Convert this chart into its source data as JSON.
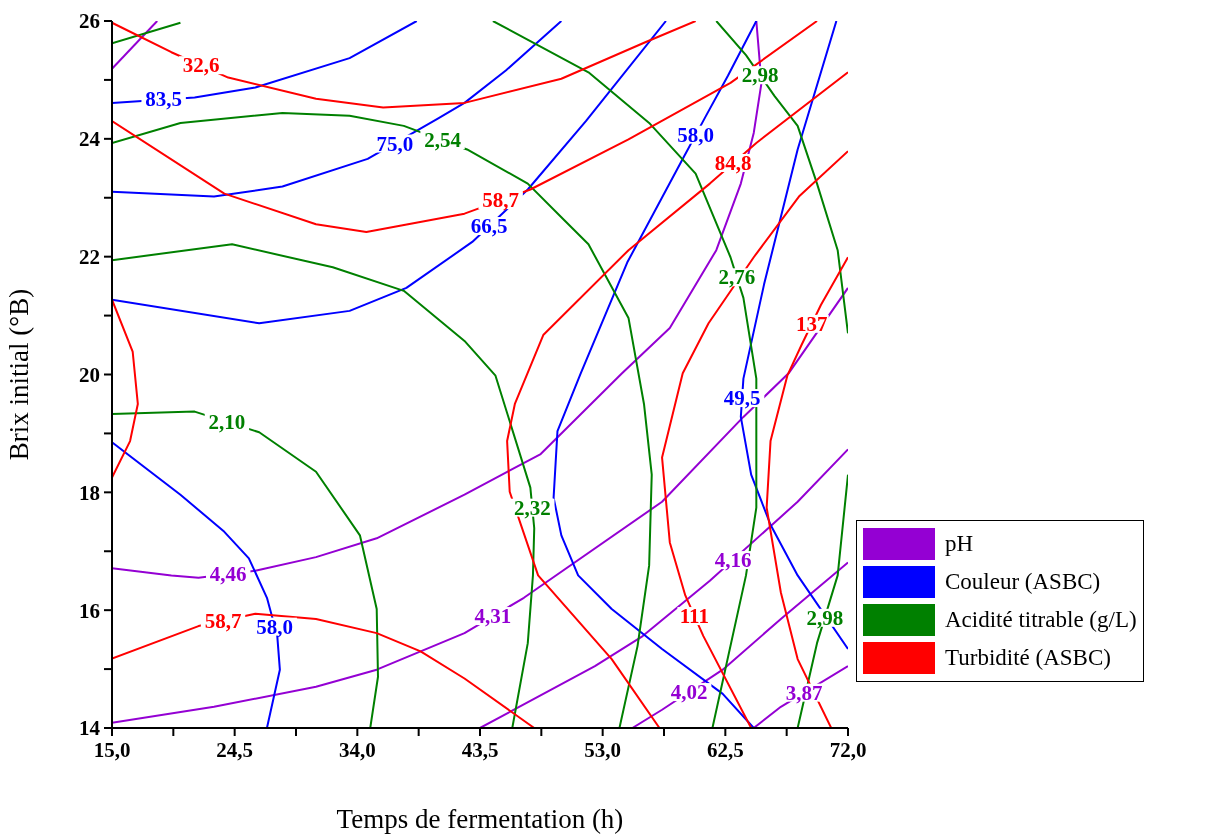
{
  "chart_data": {
    "type": "line",
    "xlabel": "Temps de fermentation (h)",
    "ylabel": "Brix initial (°B)",
    "xlim": [
      15,
      72
    ],
    "ylim": [
      14,
      26
    ],
    "xticks": [
      {
        "value": 15,
        "label": "15,0"
      },
      {
        "value": 19.75,
        "label": null
      },
      {
        "value": 24.5,
        "label": "24,5"
      },
      {
        "value": 29.25,
        "label": null
      },
      {
        "value": 34,
        "label": "34,0"
      },
      {
        "value": 38.75,
        "label": null
      },
      {
        "value": 43.5,
        "label": "43,5"
      },
      {
        "value": 48.25,
        "label": null
      },
      {
        "value": 53,
        "label": "53,0"
      },
      {
        "value": 57.75,
        "label": null
      },
      {
        "value": 62.5,
        "label": "62,5"
      },
      {
        "value": 67.25,
        "label": null
      },
      {
        "value": 72,
        "label": "72,0"
      }
    ],
    "yticks": [
      14,
      {
        "value": 15,
        "label": null
      },
      16,
      {
        "value": 17,
        "label": null
      },
      18,
      {
        "value": 19,
        "label": null
      },
      20,
      {
        "value": 21,
        "label": null
      },
      22,
      {
        "value": 23,
        "label": null
      },
      24,
      {
        "value": 25,
        "label": null
      },
      26
    ],
    "legend": "right",
    "annotations": [
      {
        "text": "4,46",
        "x": 24.0,
        "y": 16.61
      },
      {
        "text": "4,31",
        "x": 44.5,
        "y": 15.9
      },
      {
        "text": "4,16",
        "x": 63.1,
        "y": 16.85
      },
      {
        "text": "4,02",
        "x": 59.7,
        "y": 14.61
      },
      {
        "text": "3,87",
        "x": 68.6,
        "y": 14.6
      },
      {
        "text": "83,5",
        "x": 19.0,
        "y": 24.67
      },
      {
        "text": "75,0",
        "x": 36.9,
        "y": 23.92
      },
      {
        "text": "66,5",
        "x": 44.2,
        "y": 22.52
      },
      {
        "text": "58,0",
        "x": 60.2,
        "y": 24.07
      },
      {
        "text": "49,5",
        "x": 63.8,
        "y": 19.6
      },
      {
        "text": "58,0",
        "x": 27.6,
        "y": 15.72
      },
      {
        "text": "2,54",
        "x": 40.6,
        "y": 23.98
      },
      {
        "text": "2,32",
        "x": 47.55,
        "y": 17.74
      },
      {
        "text": "2,10",
        "x": 23.9,
        "y": 19.2
      },
      {
        "text": "2,76",
        "x": 63.4,
        "y": 21.65
      },
      {
        "text": "2,98",
        "x": 65.2,
        "y": 25.08
      },
      {
        "text": "2,98",
        "x": 70.2,
        "y": 15.87
      },
      {
        "text": "32,6",
        "x": 21.9,
        "y": 25.25
      },
      {
        "text": "58,7",
        "x": 45.1,
        "y": 22.96
      },
      {
        "text": "84,8",
        "x": 63.1,
        "y": 23.59
      },
      {
        "text": "111",
        "x": 60.1,
        "y": 15.9
      },
      {
        "text": "137",
        "x": 69.2,
        "y": 20.86
      },
      {
        "text": "58,7",
        "x": 23.6,
        "y": 15.82
      }
    ],
    "series": [
      {
        "name": "pH",
        "color": "#9400d3",
        "x": [
          15,
          19.6,
          21.7,
          26.1,
          30.8,
          35.5,
          42.3,
          48.2,
          54.5,
          58.2,
          61.8,
          63.7,
          64.7,
          65.3,
          64.9
        ],
        "values": [
          16.71,
          16.59,
          16.55,
          16.67,
          16.9,
          17.22,
          17.96,
          18.65,
          20.02,
          20.79,
          22.11,
          23.24,
          24.1,
          24.95,
          26
        ]
      },
      {
        "color": "#9400d3",
        "x": [
          15,
          18.5
        ],
        "values": [
          25.19,
          26
        ]
      },
      {
        "color": "#9400d3",
        "x": [
          15,
          22.9,
          30.8,
          35.5,
          42.3,
          46.9,
          57.6,
          63.9,
          67.4,
          72
        ],
        "values": [
          14.09,
          14.36,
          14.7,
          14.99,
          15.61,
          16.21,
          17.84,
          19.28,
          20.02,
          21.47
        ]
      },
      {
        "color": "#9400d3",
        "x": [
          43.5,
          52.4,
          56.1,
          61.3,
          68.1,
          72
        ],
        "values": [
          14,
          15.05,
          15.56,
          16.5,
          17.84,
          18.73
        ]
      },
      {
        "color": "#9400d3",
        "x": [
          55.3,
          57.6,
          62.3,
          66.8,
          72
        ],
        "values": [
          14,
          14.31,
          14.99,
          15.85,
          16.81
        ]
      },
      {
        "color": "#9400d3",
        "x": [
          64.7,
          66.8,
          72
        ],
        "values": [
          14,
          14.36,
          15.05
        ]
      },
      {
        "name": "Couleur (ASBC)",
        "color": "#0000ff",
        "x": [
          15,
          21.4,
          26.1,
          33.4,
          38.6
        ],
        "values": [
          24.61,
          24.7,
          24.87,
          25.37,
          26
        ]
      },
      {
        "color": "#0000ff",
        "x": [
          15,
          22.9,
          28.2,
          34.8,
          40.2,
          42.3,
          45.5,
          49.8
        ],
        "values": [
          23.1,
          23.02,
          23.19,
          23.66,
          24.34,
          24.61,
          25.16,
          26
        ]
      },
      {
        "color": "#0000ff",
        "x": [
          15,
          26.4,
          33.4,
          37.8,
          42.9,
          47.2,
          51.7,
          57.9
        ],
        "values": [
          21.27,
          20.87,
          21.08,
          21.47,
          22.25,
          23.14,
          24.3,
          26
        ]
      },
      {
        "color": "#0000ff",
        "x": [
          64.9,
          62.7,
          61.0,
          59.3,
          54.9,
          51.3,
          49.5,
          49.2,
          49.8,
          51.1,
          53.7,
          57.6,
          62.3,
          64.7
        ],
        "values": [
          26,
          25.07,
          24.39,
          23.7,
          21.9,
          20.02,
          19.04,
          17.91,
          17.27,
          16.59,
          16.02,
          15.34,
          14.58,
          14
        ]
      },
      {
        "color": "#0000ff",
        "x": [
          71.1,
          68.1,
          65.5,
          63.9,
          63.7,
          64.5,
          66.0,
          68.1,
          72
        ],
        "values": [
          26,
          23.82,
          21.53,
          19.93,
          19.28,
          18.3,
          17.45,
          16.59,
          15.34
        ]
      },
      {
        "color": "#0000ff",
        "x": [
          15,
          20.3,
          23.7,
          25.6,
          27.0,
          27.8,
          28.0,
          27.0
        ],
        "values": [
          18.85,
          17.96,
          17.33,
          16.88,
          16.21,
          15.56,
          14.99,
          14
        ]
      },
      {
        "name": "Acidité titrable (g/L)",
        "color": "#008000",
        "x": [
          15,
          20.3,
          28.2,
          33.4,
          37.6,
          42.5,
          47.2,
          49.8,
          51.9,
          55.0,
          56.2,
          56.8,
          56.6,
          55.7,
          54.3
        ],
        "values": [
          23.93,
          24.27,
          24.44,
          24.39,
          24.22,
          23.82,
          23.24,
          22.67,
          22.21,
          20.96,
          19.5,
          18.3,
          16.76,
          15.39,
          14
        ]
      },
      {
        "color": "#008000",
        "x": [
          15,
          20.3
        ],
        "values": [
          25.62,
          25.97
        ]
      },
      {
        "color": "#008000",
        "x": [
          15,
          24.3,
          32.1,
          37.6,
          42.3,
          44.7,
          47.4,
          47.7,
          47.6,
          47.2,
          46.0
        ],
        "values": [
          21.94,
          22.21,
          21.82,
          21.42,
          20.57,
          19.98,
          18.08,
          17.39,
          16.59,
          15.44,
          14
        ]
      },
      {
        "color": "#008000",
        "x": [
          15,
          21.4,
          26.4,
          30.8,
          34.2,
          35.5,
          35.6,
          35.0
        ],
        "values": [
          19.33,
          19.37,
          19.02,
          18.35,
          17.27,
          16.02,
          14.87,
          14
        ]
      },
      {
        "color": "#008000",
        "x": [
          44.5,
          51.9,
          56.6,
          60.2,
          62.9,
          63.9,
          64.9,
          64.9,
          64.1,
          61.5
        ],
        "values": [
          26,
          25.13,
          24.27,
          23.41,
          21.99,
          21.3,
          19.93,
          17.74,
          16.59,
          14
        ]
      },
      {
        "color": "#008000",
        "x": [
          61.8,
          64.1,
          66.3,
          68.1,
          69.6,
          71.2,
          72
        ],
        "values": [
          26,
          25.42,
          24.73,
          24.22,
          23.24,
          22.11,
          20.7
        ]
      },
      {
        "color": "#008000",
        "x": [
          72,
          71.2,
          69.6,
          68.1
        ],
        "values": [
          18.3,
          16.59,
          15.44,
          14
        ]
      },
      {
        "name": "Turbidité (ASBC)",
        "color": "#ff0000",
        "x": [
          15,
          19.6,
          24.0,
          30.8,
          36.0,
          42.3,
          49.8,
          56.3,
          60.2
        ],
        "values": [
          25.97,
          25.47,
          25.04,
          24.68,
          24.53,
          24.61,
          25.02,
          25.64,
          26
        ]
      },
      {
        "color": "#ff0000",
        "x": [
          15,
          23.7,
          30.8,
          34.7,
          42.3,
          47.4,
          55.0,
          62.9,
          69.6
        ],
        "values": [
          24.3,
          23.07,
          22.55,
          22.42,
          22.73,
          23.14,
          23.99,
          24.95,
          26
        ]
      },
      {
        "color": "#ff0000",
        "x": [
          72,
          64.9,
          61.3,
          55.0,
          48.4,
          46.2,
          45.6,
          45.8,
          48.0,
          53.7,
          57.4
        ],
        "values": [
          25.13,
          23.93,
          23.24,
          22.11,
          20.67,
          19.5,
          18.87,
          18.01,
          16.59,
          15.17,
          14
        ]
      },
      {
        "color": "#ff0000",
        "x": [
          72,
          68.2,
          64.7,
          61.2,
          59.2,
          57.6,
          58.2,
          59.4,
          60.8,
          64.5
        ],
        "values": [
          23.79,
          23.02,
          21.99,
          20.87,
          20.02,
          18.59,
          17.15,
          16.25,
          15.56,
          14
        ]
      },
      {
        "color": "#ff0000",
        "x": [
          72,
          69.9,
          68.4,
          67.3,
          66.0,
          65.7,
          66.8,
          68.1,
          70.7
        ],
        "values": [
          21.99,
          21.18,
          20.5,
          19.98,
          18.87,
          17.74,
          16.3,
          15.17,
          14
        ]
      },
      {
        "color": "#ff0000",
        "x": [
          15,
          21.7,
          26.1,
          30.8,
          35.5,
          38.9,
          42.3,
          47.7
        ],
        "values": [
          15.18,
          15.73,
          15.94,
          15.85,
          15.61,
          15.3,
          14.84,
          14
        ]
      },
      {
        "color": "#ff0000",
        "x": [
          15,
          16.6,
          17.0,
          16.4,
          15
        ],
        "values": [
          21.27,
          20.39,
          19.5,
          18.87,
          18.25
        ]
      }
    ]
  }
}
